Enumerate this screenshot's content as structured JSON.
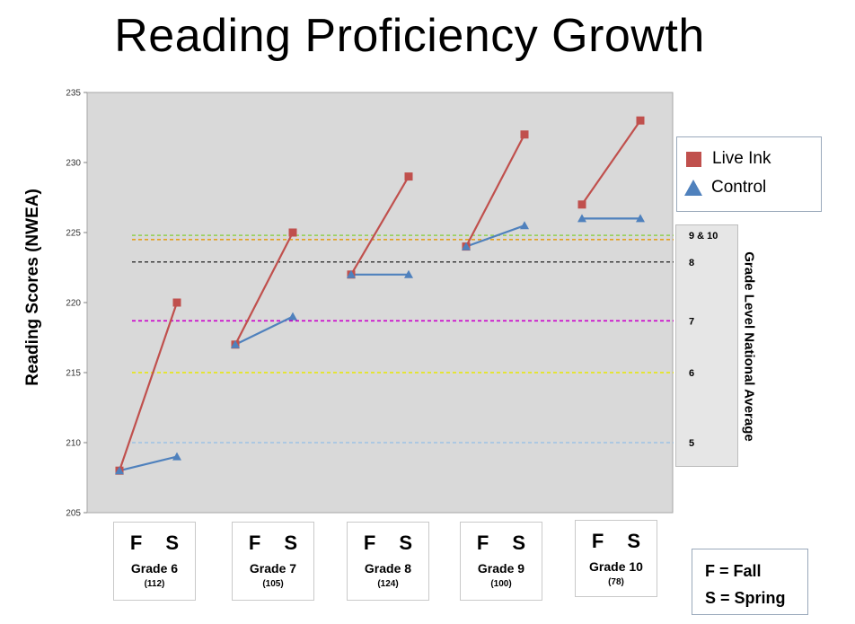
{
  "title": "Reading Proficiency Growth",
  "ylabel": "Reading Scores (NWEA)",
  "reference_title": "Grade Level  National Average",
  "legend": {
    "live_ink": "Live Ink",
    "control": "Control"
  },
  "key": {
    "fall": "F = Fall",
    "spring": "S = Spring"
  },
  "grades": [
    {
      "fall": "F",
      "spring": "S",
      "name": "Grade 6",
      "n": "(112)"
    },
    {
      "fall": "F",
      "spring": "S",
      "name": "Grade 7",
      "n": "(105)"
    },
    {
      "fall": "F",
      "spring": "S",
      "name": "Grade 8",
      "n": "(124)"
    },
    {
      "fall": "F",
      "spring": "S",
      "name": "Grade 9",
      "n": "(100)"
    },
    {
      "fall": "F",
      "spring": "S",
      "name": "Grade 10",
      "n": "(78)"
    }
  ],
  "colors": {
    "live_ink": "#c0504d",
    "control": "#4f81bd",
    "plot_bg": "#d9d9d9"
  },
  "chart_data": {
    "type": "line",
    "title": "Reading Proficiency Growth",
    "xlabel": "",
    "ylabel": "Reading Scores (NWEA)",
    "ylim": [
      205,
      235
    ],
    "yticks": [
      205,
      210,
      215,
      220,
      225,
      230,
      235
    ],
    "grid": false,
    "legend_position": "top-right",
    "categories": [
      "Grade 6",
      "Grade 7",
      "Grade 8",
      "Grade 9",
      "Grade 10"
    ],
    "series": [
      {
        "name": "Live Ink",
        "marker": "square",
        "fall": [
          208,
          217,
          222,
          224,
          227
        ],
        "spring": [
          220,
          225,
          229,
          232,
          233
        ]
      },
      {
        "name": "Control",
        "marker": "triangle",
        "fall": [
          208,
          217,
          222,
          224,
          226
        ],
        "spring": [
          209,
          219,
          222,
          225.5,
          226
        ]
      }
    ],
    "reference_lines": [
      {
        "label": "9 & 10",
        "value": 224.8,
        "color": "#92d050"
      },
      {
        "label": "",
        "value": 224.5,
        "color": "#e5a020"
      },
      {
        "label": "8",
        "value": 222.9,
        "color": "#404040"
      },
      {
        "label": "7",
        "value": 218.7,
        "color": "#cc00cc"
      },
      {
        "label": "6",
        "value": 215.0,
        "color": "#e8e800"
      },
      {
        "label": "5",
        "value": 210.0,
        "color": "#9dc3e6"
      }
    ]
  }
}
